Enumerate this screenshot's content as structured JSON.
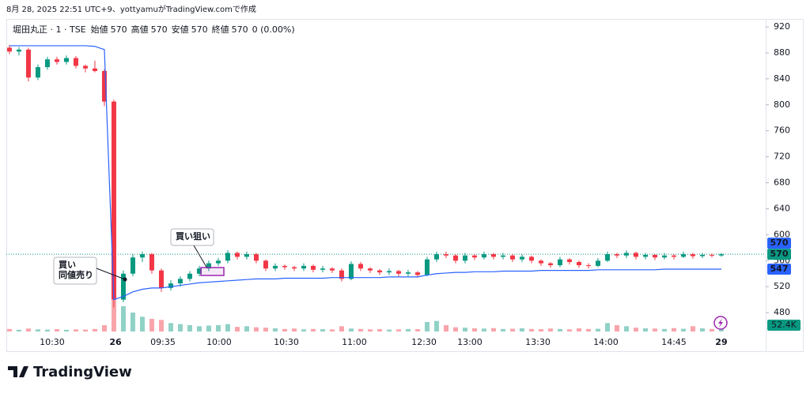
{
  "caption": "8月 28, 2025 22:51 UTC+9、yottyamuがTradingView.comで作成",
  "footer": "TradingView",
  "chart_data": {
    "type": "candlestick",
    "legend": {
      "symbol": "堀田丸正 · 1 · TSE",
      "items": [
        {
          "label": "始値",
          "value": 570
        },
        {
          "label": "高値",
          "value": 570
        },
        {
          "label": "安値",
          "value": 570
        },
        {
          "label": "終値",
          "value": 570
        }
      ],
      "change": "0 (0.00%)"
    },
    "up_color": "#089981",
    "down_color": "#f23645",
    "vwap_color": "#2962ff",
    "ylim": [
      451,
      931
    ],
    "yticks": [
      480,
      520,
      560,
      600,
      640,
      680,
      720,
      760,
      800,
      840,
      880,
      920
    ],
    "xlim": [
      -0.33,
      79.67
    ],
    "xticks": [
      {
        "value": 4.5,
        "label": "10:30"
      },
      {
        "value": 11.17,
        "label": "26"
      },
      {
        "value": 16.17,
        "label": "09:35"
      },
      {
        "value": 22.08,
        "label": "10:00"
      },
      {
        "value": 29.17,
        "label": "10:30"
      },
      {
        "value": 36.33,
        "label": "11:00"
      },
      {
        "value": 43.67,
        "label": "12:30"
      },
      {
        "value": 48.5,
        "label": "13:00"
      },
      {
        "value": 55.67,
        "label": "13:30"
      },
      {
        "value": 62.83,
        "label": "14:00"
      },
      {
        "value": 70,
        "label": "14:45"
      },
      {
        "value": 75,
        "label": "29"
      }
    ],
    "grid": false,
    "ohlc": [
      [
        888,
        892,
        878,
        882
      ],
      [
        882,
        889,
        876,
        885
      ],
      [
        885,
        888,
        836,
        842
      ],
      [
        842,
        862,
        838,
        858
      ],
      [
        858,
        874,
        854,
        870
      ],
      [
        870,
        874,
        862,
        866
      ],
      [
        866,
        876,
        862,
        872
      ],
      [
        872,
        875,
        856,
        860
      ],
      [
        860,
        862,
        850,
        856
      ],
      [
        856,
        868,
        850,
        852
      ],
      [
        852,
        855,
        798,
        805
      ],
      [
        805,
        808,
        488,
        500
      ],
      [
        500,
        545,
        496,
        540
      ],
      [
        540,
        570,
        536,
        565
      ],
      [
        565,
        574,
        558,
        570
      ],
      [
        570,
        572,
        540,
        545
      ],
      [
        545,
        548,
        512,
        518
      ],
      [
        518,
        530,
        514,
        525
      ],
      [
        525,
        536,
        520,
        532
      ],
      [
        532,
        544,
        528,
        540
      ],
      [
        540,
        552,
        536,
        548
      ],
      [
        548,
        560,
        544,
        556
      ],
      [
        556,
        564,
        552,
        560
      ],
      [
        560,
        576,
        556,
        572
      ],
      [
        572,
        574,
        562,
        566
      ],
      [
        566,
        574,
        562,
        570
      ],
      [
        570,
        572,
        556,
        560
      ],
      [
        560,
        562,
        544,
        548
      ],
      [
        548,
        556,
        544,
        552
      ],
      [
        552,
        554,
        546,
        550
      ],
      [
        550,
        552,
        544,
        548
      ],
      [
        548,
        556,
        544,
        552
      ],
      [
        552,
        554,
        542,
        546
      ],
      [
        546,
        552,
        542,
        548
      ],
      [
        548,
        550,
        541,
        545
      ],
      [
        545,
        548,
        528,
        532
      ],
      [
        532,
        559,
        530,
        555
      ],
      [
        555,
        558,
        544,
        548
      ],
      [
        548,
        550,
        541,
        545
      ],
      [
        545,
        547,
        538,
        542
      ],
      [
        542,
        548,
        538,
        544
      ],
      [
        544,
        546,
        536,
        540
      ],
      [
        540,
        546,
        536,
        542
      ],
      [
        542,
        544,
        534,
        538
      ],
      [
        538,
        566,
        536,
        562
      ],
      [
        562,
        574,
        558,
        570
      ],
      [
        570,
        574,
        564,
        568
      ],
      [
        568,
        570,
        556,
        560
      ],
      [
        560,
        572,
        556,
        568
      ],
      [
        568,
        570,
        561,
        565
      ],
      [
        565,
        574,
        562,
        570
      ],
      [
        570,
        572,
        562,
        566
      ],
      [
        566,
        572,
        562,
        568
      ],
      [
        568,
        570,
        558,
        562
      ],
      [
        562,
        570,
        558,
        566
      ],
      [
        566,
        568,
        556,
        560
      ],
      [
        560,
        562,
        552,
        556
      ],
      [
        556,
        558,
        549,
        553
      ],
      [
        553,
        566,
        550,
        562
      ],
      [
        562,
        564,
        554,
        558
      ],
      [
        558,
        560,
        549,
        553
      ],
      [
        553,
        556,
        548,
        552
      ],
      [
        552,
        564,
        550,
        560
      ],
      [
        560,
        574,
        558,
        570
      ],
      [
        570,
        572,
        564,
        568
      ],
      [
        568,
        576,
        564,
        572
      ],
      [
        572,
        574,
        562,
        566
      ],
      [
        566,
        572,
        562,
        569
      ],
      [
        569,
        570,
        561,
        565
      ],
      [
        565,
        572,
        562,
        568
      ],
      [
        568,
        570,
        562,
        566
      ],
      [
        566,
        574,
        564,
        570
      ],
      [
        570,
        572,
        563,
        567
      ],
      [
        567,
        572,
        564,
        569
      ],
      [
        569,
        571,
        565,
        568
      ],
      [
        568,
        572,
        566,
        570
      ]
    ],
    "vwap": [
      891,
      891,
      891,
      891,
      891,
      891,
      891,
      891,
      891,
      890,
      885,
      500,
      505,
      512,
      516,
      518,
      518,
      520,
      522,
      524,
      526,
      527,
      528,
      529,
      530,
      531,
      532,
      532,
      532,
      533,
      533,
      533,
      533,
      533,
      534,
      534,
      534,
      534,
      534,
      534,
      535,
      535,
      535,
      535,
      538,
      540,
      541,
      542,
      542,
      543,
      543,
      543,
      544,
      544,
      544,
      544,
      545,
      545,
      545,
      545,
      545,
      545,
      546,
      546,
      546,
      546,
      546,
      546,
      546,
      547,
      547,
      547,
      547,
      547,
      547,
      547
    ],
    "volume": [
      12,
      8,
      14,
      10,
      9,
      11,
      8,
      10,
      9,
      12,
      30,
      150,
      120,
      90,
      70,
      60,
      55,
      40,
      35,
      30,
      25,
      28,
      30,
      35,
      22,
      25,
      20,
      18,
      15,
      12,
      14,
      10,
      12,
      11,
      10,
      25,
      14,
      12,
      10,
      11,
      9,
      10,
      12,
      11,
      45,
      50,
      30,
      20,
      18,
      15,
      14,
      16,
      12,
      13,
      15,
      12,
      11,
      14,
      12,
      10,
      15,
      12,
      13,
      40,
      30,
      25,
      18,
      15,
      14,
      12,
      16,
      13,
      25,
      15,
      12,
      52.4
    ],
    "last_volume_label": "52.4K",
    "price_labels": [
      {
        "value": 570,
        "color": "#2962ff"
      },
      {
        "value": 570,
        "color": "#089981"
      },
      {
        "value": 547,
        "color": "#2962ff"
      }
    ],
    "annotations": [
      {
        "lines": [
          "買い",
          "同値売り"
        ]
      },
      {
        "lines": [
          "買い狙い"
        ]
      }
    ]
  }
}
